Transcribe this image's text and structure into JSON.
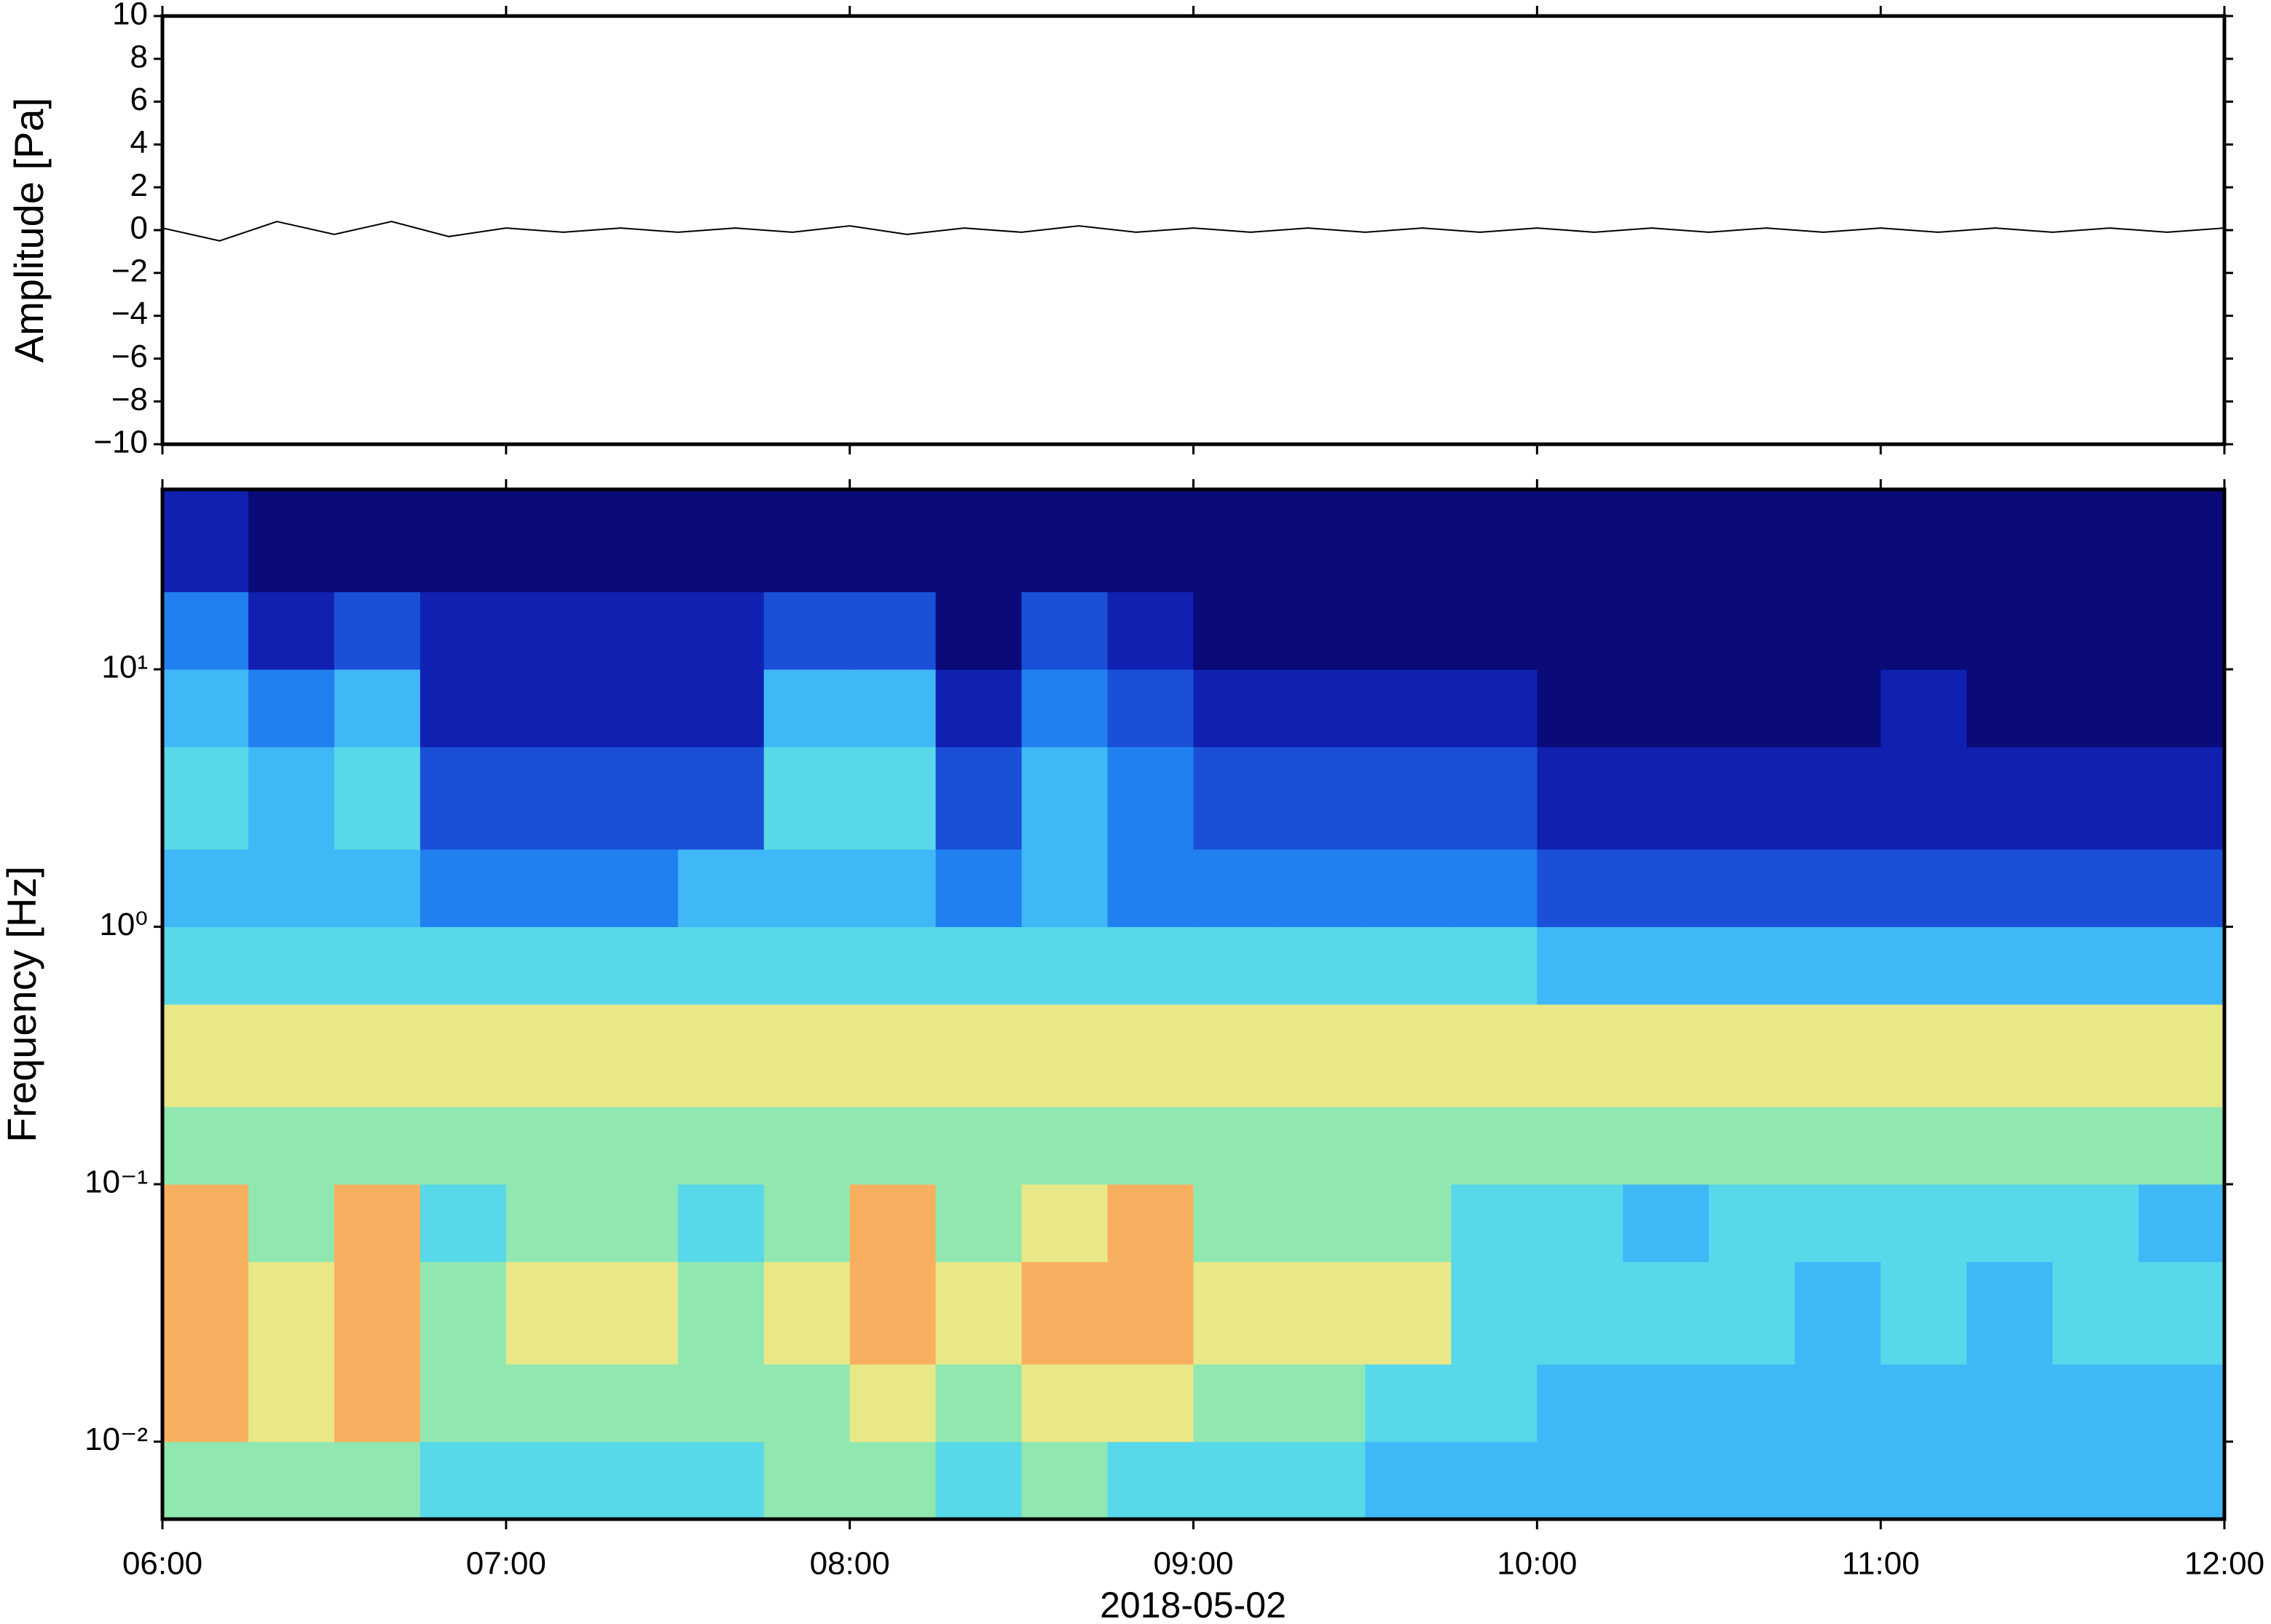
{
  "chart_data": [
    {
      "type": "line",
      "ylabel": "Amplitude [Pa]",
      "color": "#000000",
      "ylim": [
        -10,
        10
      ],
      "yticks": [
        {
          "value": -10,
          "label": "−10"
        },
        {
          "value": -8,
          "label": "−8"
        },
        {
          "value": -6,
          "label": "−6"
        },
        {
          "value": -4,
          "label": "−4"
        },
        {
          "value": -2,
          "label": "−2"
        },
        0,
        2,
        4,
        6,
        8,
        10
      ],
      "x": [
        "06:00",
        "06:10",
        "06:20",
        "06:30",
        "06:40",
        "06:50",
        "07:00",
        "07:10",
        "07:20",
        "07:30",
        "07:40",
        "07:50",
        "08:00",
        "08:10",
        "08:20",
        "08:30",
        "08:40",
        "08:50",
        "09:00",
        "09:10",
        "09:20",
        "09:30",
        "09:40",
        "09:50",
        "10:00",
        "10:10",
        "10:20",
        "10:30",
        "10:40",
        "10:50",
        "11:00",
        "11:10",
        "11:20",
        "11:30",
        "11:40",
        "11:50",
        "12:00"
      ],
      "values": [
        0.1,
        -0.5,
        0.4,
        -0.2,
        0.4,
        -0.3,
        0.1,
        -0.1,
        0.1,
        -0.1,
        0.1,
        -0.1,
        0.2,
        -0.2,
        0.1,
        -0.1,
        0.2,
        -0.1,
        0.1,
        -0.1,
        0.1,
        -0.1,
        0.1,
        -0.1,
        0.1,
        -0.1,
        0.1,
        -0.1,
        0.1,
        -0.1,
        0.1,
        -0.1,
        0.1,
        -0.1,
        0.1,
        -0.1,
        0.1
      ]
    },
    {
      "type": "heatmap",
      "ylabel": "Frequency [Hz]",
      "xlabel": "2018-05-02",
      "log_y": true,
      "xlim": [
        "06:00",
        "12:00"
      ],
      "xticks": [
        "06:00",
        "07:00",
        "08:00",
        "09:00",
        "10:00",
        "11:00",
        "12:00"
      ],
      "ylim": [
        0.005,
        50
      ],
      "yticks": [
        {
          "value": 0.01,
          "label": "10⁻²"
        },
        {
          "value": 0.1,
          "label": "10⁻¹"
        },
        {
          "value": 1,
          "label": "10⁰"
        },
        {
          "value": 10,
          "label": "10¹"
        }
      ],
      "x_bins": [
        "06:00",
        "06:15",
        "06:30",
        "06:45",
        "07:00",
        "07:15",
        "07:30",
        "07:45",
        "08:00",
        "08:15",
        "08:30",
        "08:45",
        "09:00",
        "09:15",
        "09:30",
        "09:45",
        "10:00",
        "10:15",
        "10:30",
        "10:45",
        "11:00",
        "11:15",
        "11:30",
        "11:45",
        "12:00"
      ],
      "y_bins": [
        0.005,
        0.01,
        0.02,
        0.05,
        0.1,
        0.2,
        0.5,
        1,
        2,
        5,
        10,
        20,
        50
      ],
      "colormap": [
        "#0a0a78",
        "#1020b0",
        "#1a50d8",
        "#2080f0",
        "#40b8f8",
        "#58d8e8",
        "#90e8b0",
        "#e8e888",
        "#f8b060",
        "#f07848"
      ],
      "z": [
        [
          6,
          6,
          6,
          5,
          5,
          5,
          5,
          6,
          6,
          5,
          6,
          5,
          5,
          5,
          4,
          4,
          4,
          4,
          4,
          4,
          4,
          4,
          4,
          4
        ],
        [
          8,
          7,
          8,
          6,
          6,
          6,
          6,
          6,
          7,
          6,
          7,
          7,
          6,
          6,
          5,
          5,
          4,
          4,
          4,
          4,
          4,
          4,
          4,
          4
        ],
        [
          8,
          7,
          8,
          6,
          7,
          7,
          6,
          7,
          8,
          7,
          8,
          8,
          7,
          7,
          7,
          5,
          5,
          5,
          5,
          4,
          5,
          4,
          5,
          5
        ],
        [
          8,
          6,
          8,
          5,
          6,
          6,
          5,
          6,
          8,
          6,
          7,
          8,
          6,
          6,
          6,
          5,
          5,
          4,
          5,
          5,
          5,
          5,
          5,
          4
        ],
        [
          6,
          6,
          6,
          6,
          6,
          6,
          6,
          6,
          6,
          6,
          6,
          6,
          6,
          6,
          6,
          6,
          6,
          6,
          6,
          6,
          6,
          6,
          6,
          6
        ],
        [
          7,
          7,
          7,
          7,
          7,
          7,
          7,
          7,
          7,
          7,
          7,
          7,
          7,
          7,
          7,
          7,
          7,
          7,
          7,
          7,
          7,
          7,
          7,
          7
        ],
        [
          5,
          5,
          5,
          5,
          5,
          5,
          5,
          5,
          5,
          5,
          5,
          5,
          5,
          5,
          5,
          5,
          4,
          4,
          4,
          4,
          4,
          4,
          4,
          4
        ],
        [
          4,
          4,
          4,
          3,
          3,
          3,
          4,
          4,
          4,
          3,
          4,
          3,
          3,
          3,
          3,
          3,
          2,
          2,
          2,
          2,
          2,
          2,
          2,
          2
        ],
        [
          5,
          4,
          5,
          2,
          2,
          2,
          2,
          5,
          5,
          2,
          4,
          3,
          2,
          2,
          2,
          2,
          1,
          1,
          1,
          1,
          1,
          1,
          1,
          1
        ],
        [
          4,
          3,
          4,
          1,
          1,
          1,
          1,
          4,
          4,
          1,
          3,
          2,
          1,
          1,
          1,
          1,
          0,
          0,
          0,
          0,
          1,
          0,
          0,
          0
        ],
        [
          3,
          1,
          2,
          1,
          1,
          1,
          1,
          2,
          2,
          0,
          2,
          1,
          0,
          0,
          0,
          0,
          0,
          0,
          0,
          0,
          0,
          0,
          0,
          0
        ],
        [
          1,
          0,
          0,
          0,
          0,
          0,
          0,
          0,
          0,
          0,
          0,
          0,
          0,
          0,
          0,
          0,
          0,
          0,
          0,
          0,
          0,
          0,
          0,
          0
        ]
      ]
    }
  ]
}
